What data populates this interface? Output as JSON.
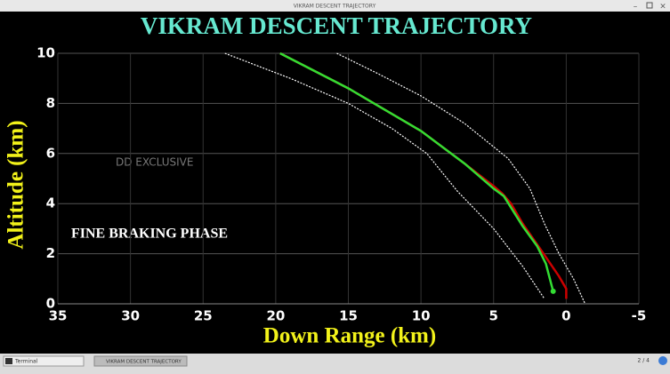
{
  "window": {
    "title": "VIKRAM DESCENT TRAJECTORY"
  },
  "taskbar": {
    "items": [
      "Terminal",
      "VIKRAM DESCENT TRAJECTORY"
    ],
    "workspace": "2 / 4"
  },
  "chart_data": {
    "type": "line",
    "title": "VIKRAM DESCENT TRAJECTORY",
    "x_label": "Down Range (km)",
    "y_label": "Altitude (km)",
    "annotations": [
      "DD EXCLUSIVE",
      "FINE BRAKING PHASE"
    ],
    "xlim": [
      35,
      -5
    ],
    "ylim": [
      0,
      10
    ],
    "xticks": [
      35,
      30,
      25,
      20,
      15,
      10,
      5,
      0,
      -5
    ],
    "yticks": [
      0,
      2,
      4,
      6,
      8,
      10
    ],
    "grid": true,
    "series": [
      {
        "color": "#ffffff",
        "style": "dotted",
        "x": [
          23.5,
          19,
          15,
          12,
          9.6,
          7.5,
          5,
          3,
          1.5
        ],
        "values": [
          10,
          9,
          8,
          7,
          6,
          4.5,
          3,
          1.5,
          0.2
        ]
      },
      {
        "color": "#ffffff",
        "style": "dotted",
        "x": [
          15.8,
          13,
          10,
          7,
          4,
          2.5,
          1.5,
          0.5,
          -0.5,
          -1.3
        ],
        "values": [
          10,
          9.2,
          8.3,
          7.2,
          5.8,
          4.6,
          3.2,
          2,
          1,
          0
        ]
      },
      {
        "color": "#cc0000",
        "style": "solid",
        "x": [
          19.7,
          15,
          10,
          7,
          5,
          4.4,
          3.8,
          3,
          1.8,
          0.5,
          0,
          0
        ],
        "values": [
          10,
          8.6,
          6.9,
          5.6,
          4.7,
          4.4,
          4,
          3.2,
          2.2,
          1.1,
          0.6,
          0.2
        ]
      },
      {
        "color": "#33dd33",
        "style": "solid",
        "marker": "end",
        "x": [
          19.7,
          15,
          10,
          7,
          5,
          4.3,
          3,
          2,
          1.4,
          0.9
        ],
        "values": [
          10,
          8.6,
          6.9,
          5.6,
          4.6,
          4.3,
          3.1,
          2.3,
          1.6,
          0.5
        ]
      }
    ]
  }
}
